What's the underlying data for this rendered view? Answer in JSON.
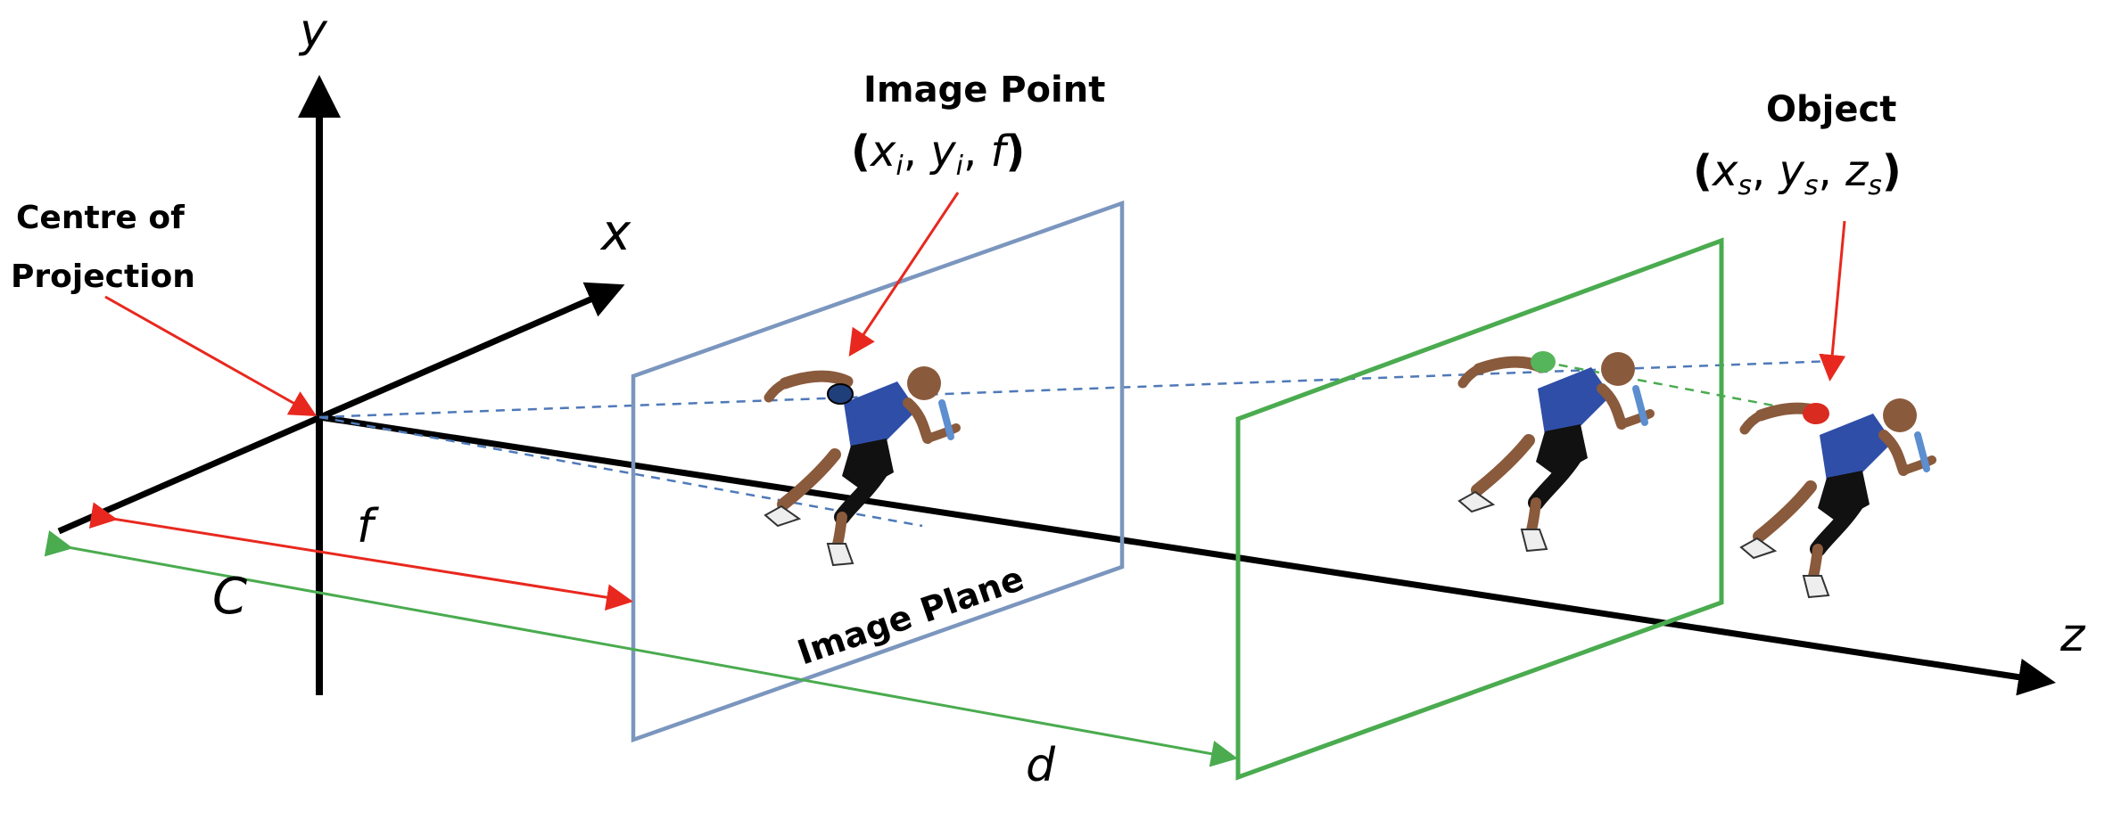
{
  "axes": {
    "y": "y",
    "x": "x",
    "z": "z"
  },
  "labels": {
    "centre_line1": "Centre of",
    "centre_line2": "Projection",
    "image_point_title": "Image Point",
    "image_point_coords": {
      "open": "(",
      "x": "x",
      "xsub": "i",
      "sep1": ", ",
      "y": "y",
      "ysub": "i",
      "sep2": ", ",
      "f": "f",
      "close": ")"
    },
    "object_title": "Object",
    "object_coords": {
      "open": "(",
      "x": "x",
      "xsub": "s",
      "sep1": ", ",
      "y": "y",
      "ysub": "s",
      "sep2": ", ",
      "z": "z",
      "zsub": "s",
      "close": ")"
    },
    "image_plane": "Image Plane",
    "f": "f",
    "c": "C",
    "d": "d"
  },
  "colors": {
    "axis": "#000000",
    "red_arrow": "#e8281e",
    "green": "#4aab4f",
    "blue_plane": "#7b96be",
    "projection_dash": "#4f79b8",
    "image_point_dot": "#1f3f7a",
    "green_dot": "#55b55a",
    "object_dot": "#d92b20",
    "shirt": "#2f4ea8",
    "skin": "#8a5a3c",
    "shorts": "#111111"
  },
  "icons": [
    "runner-figure-icon"
  ]
}
